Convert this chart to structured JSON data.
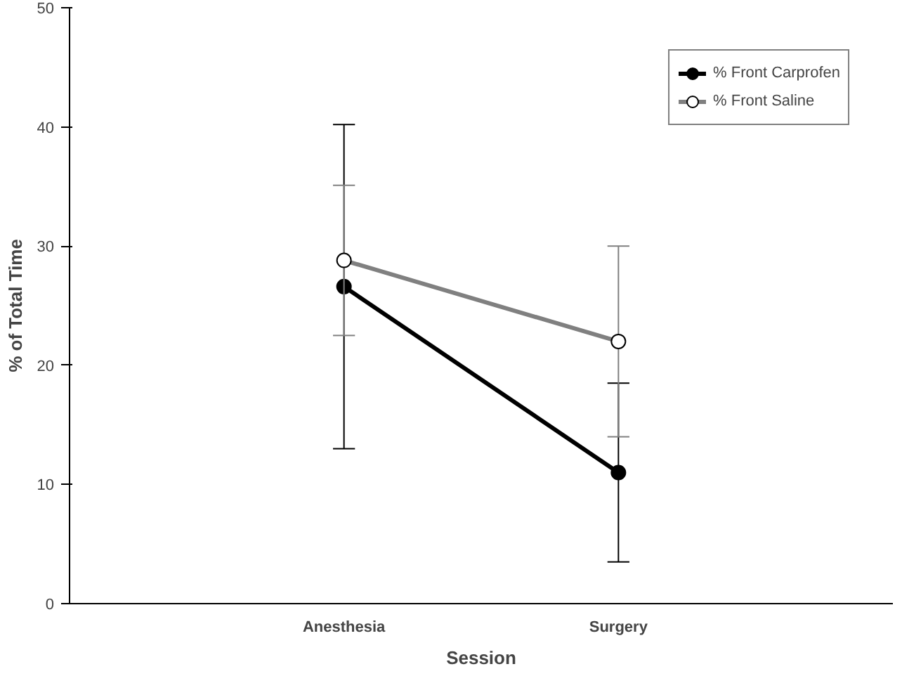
{
  "chart_data": {
    "type": "line",
    "xlabel": "Session",
    "ylabel": "% of Total Time",
    "categories": [
      "Anesthesia",
      "Surgery"
    ],
    "series": [
      {
        "name": "% Front Carprofen",
        "color": "#000000",
        "values": [
          26.6,
          11.0
        ],
        "errors": [
          13.6,
          7.5
        ]
      },
      {
        "name": "% Front Saline",
        "color": "#808080",
        "values": [
          28.8,
          22.0
        ],
        "errors": [
          6.3,
          8.0
        ]
      }
    ],
    "ylim": [
      0,
      50
    ],
    "yticks": [
      0,
      10,
      20,
      30,
      40,
      50
    ],
    "grid": false,
    "legend": "top right",
    "marker": "circle",
    "line_style": "solid"
  }
}
